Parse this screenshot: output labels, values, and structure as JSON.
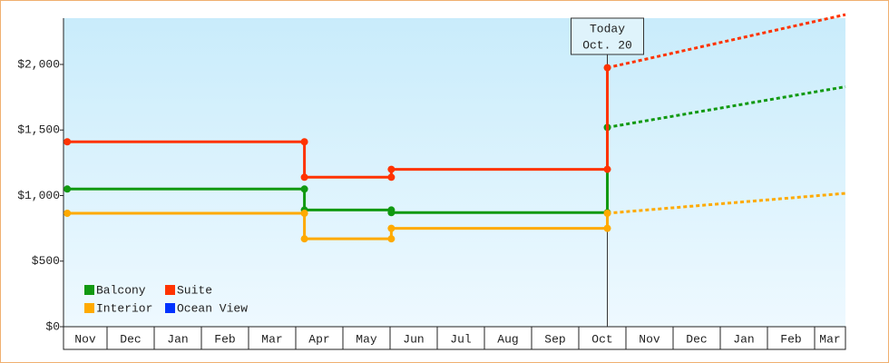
{
  "chart_data": {
    "type": "step-line",
    "categories": [
      "Nov",
      "Dec",
      "Jan",
      "Feb",
      "Mar",
      "Apr",
      "May",
      "Jun",
      "Jul",
      "Aug",
      "Sep",
      "Oct",
      "Nov",
      "Dec",
      "Jan",
      "Feb",
      "Mar"
    ],
    "xlim": [
      0,
      16.65
    ],
    "ylim": [
      0,
      2353
    ],
    "yticks": [
      {
        "value": 0,
        "label": "$0"
      },
      {
        "value": 500,
        "label": "$500"
      },
      {
        "value": 1000,
        "label": "$1,000"
      },
      {
        "value": 1500,
        "label": "$1,500"
      },
      {
        "value": 2000,
        "label": "$2,000"
      }
    ],
    "today": {
      "x": 11.58,
      "label": [
        "Today",
        "Oct. 20"
      ]
    },
    "series": [
      {
        "name": "Balcony",
        "color": "#119911",
        "x": [
          0.08,
          5.13,
          5.13,
          6.98,
          6.98,
          11.58,
          11.58
        ],
        "values": [
          1050,
          1050,
          890,
          890,
          870,
          870,
          1520
        ],
        "forecast_x": [
          11.58,
          16.65
        ],
        "forecast_values": [
          1520,
          1830
        ]
      },
      {
        "name": "Suite",
        "color": "#ff3300",
        "x": [
          0.08,
          5.13,
          5.13,
          6.98,
          6.98,
          11.58,
          11.58
        ],
        "values": [
          1410,
          1410,
          1140,
          1140,
          1200,
          1200,
          1975
        ],
        "forecast_x": [
          11.58,
          16.65
        ],
        "forecast_values": [
          1975,
          2380
        ]
      },
      {
        "name": "Interior",
        "color": "#ffaa00",
        "x": [
          0.08,
          5.13,
          5.13,
          6.98,
          6.98,
          11.58,
          11.58
        ],
        "values": [
          865,
          865,
          670,
          670,
          750,
          750,
          865
        ],
        "forecast_x": [
          11.58,
          16.65
        ],
        "forecast_values": [
          865,
          1017
        ]
      },
      {
        "name": "Ocean View",
        "color": "#0033ff",
        "x": [],
        "values": [],
        "forecast_x": [],
        "forecast_values": []
      }
    ]
  }
}
